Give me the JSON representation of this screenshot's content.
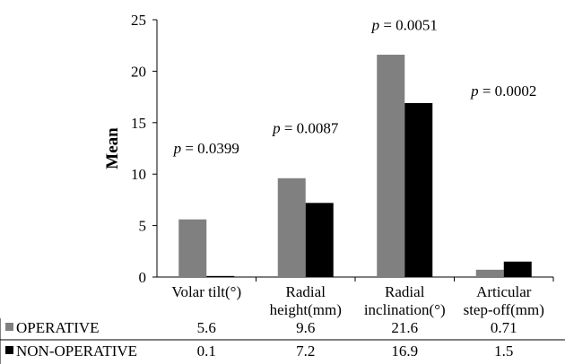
{
  "chart_data": {
    "type": "bar",
    "ylabel": "Mean",
    "ylim": [
      0,
      25
    ],
    "yticks": [
      0,
      5,
      10,
      15,
      20,
      25
    ],
    "grid": false,
    "categories": [
      [
        "Volar tilt(°)"
      ],
      [
        "Radial",
        "height(mm)"
      ],
      [
        "Radial",
        "inclination(°)"
      ],
      [
        "Articular",
        "step-off(mm)"
      ]
    ],
    "series": [
      {
        "name": "OPERATIVE",
        "color": "#808080",
        "values": [
          5.6,
          9.6,
          21.6,
          0.71
        ],
        "labels": [
          "5.6",
          "9.6",
          "21.6",
          "0.71"
        ]
      },
      {
        "name": "NON-OPERATIVE",
        "color": "#000000",
        "values": [
          0.1,
          7.2,
          16.9,
          1.5
        ],
        "labels": [
          "0.1",
          "7.2",
          "16.9",
          "1.5"
        ]
      }
    ],
    "annotations": [
      {
        "category": 0,
        "y": 12,
        "p_symbol": "p",
        "text": " = 0.0399"
      },
      {
        "category": 1,
        "y": 14,
        "p_symbol": "p",
        "text": " = 0.0087"
      },
      {
        "category": 2,
        "y": 24,
        "p_symbol": "p",
        "text": " = 0.0051"
      },
      {
        "category": 3,
        "y": 17.6,
        "p_symbol": "p",
        "text": " = 0.0002"
      }
    ],
    "legend": "data-table-below"
  }
}
